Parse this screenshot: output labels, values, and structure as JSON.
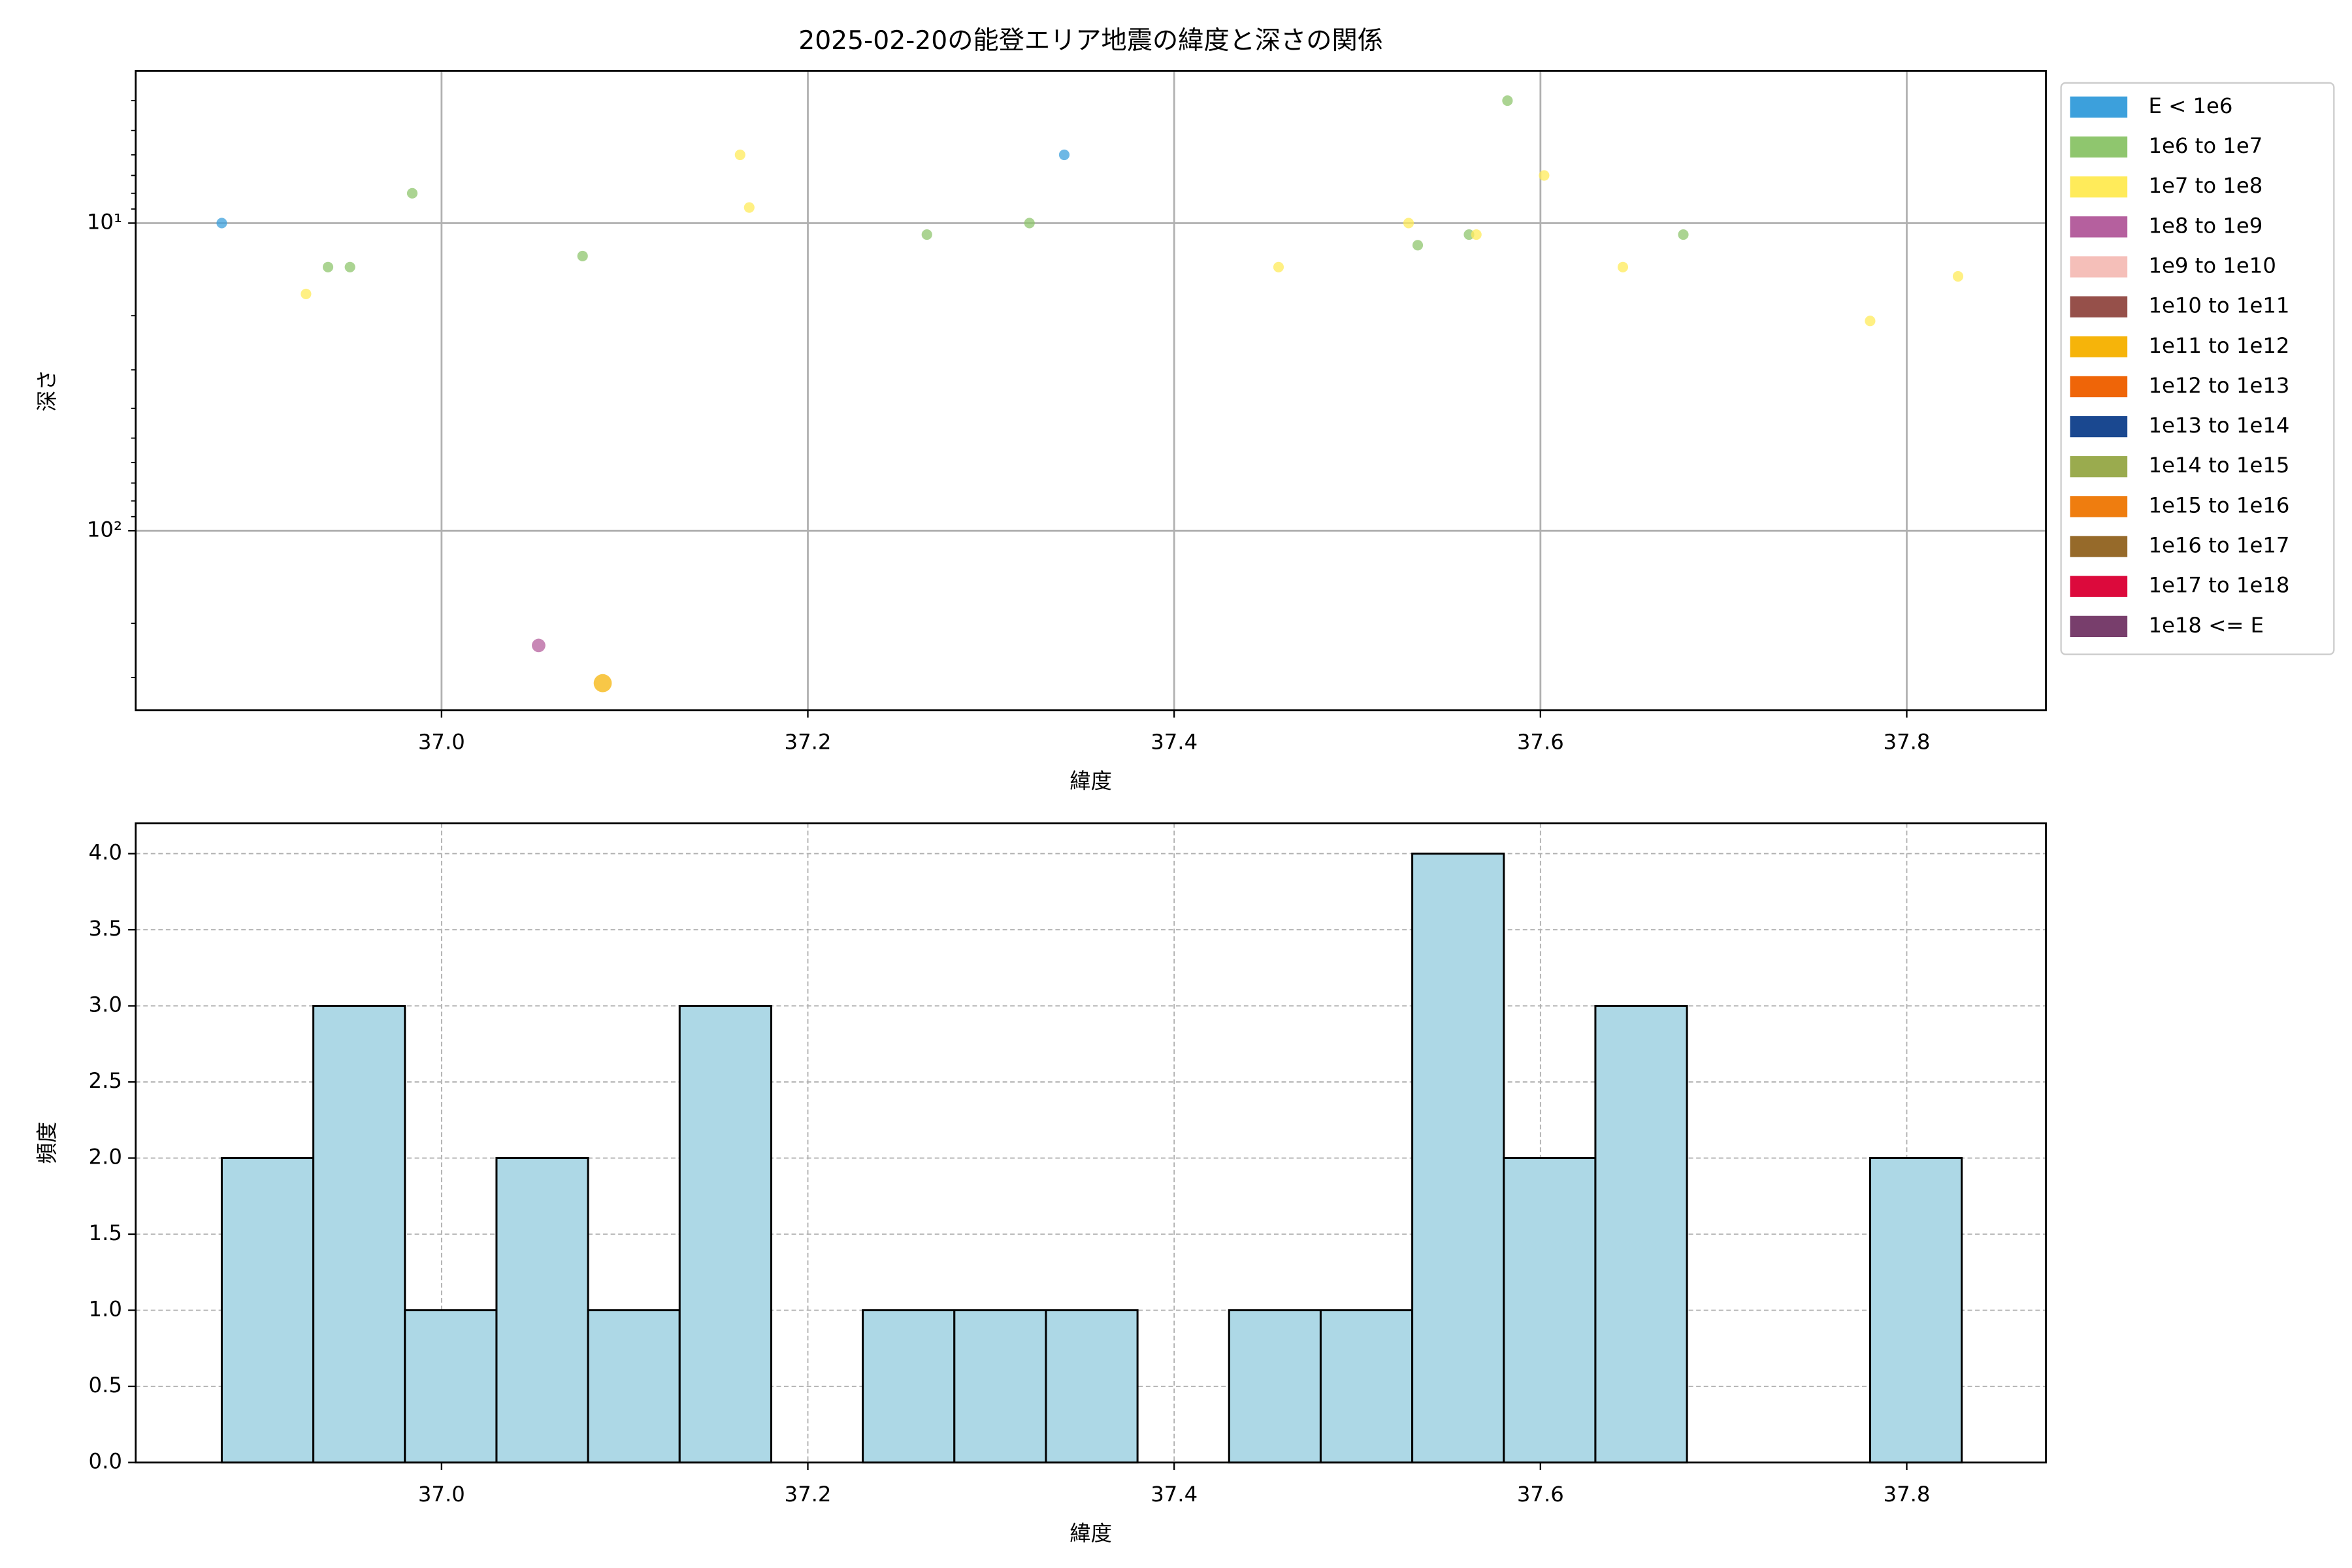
{
  "chart_data": [
    {
      "type": "scatter",
      "title": "2025-02-20の能登エリア地震の緯度と深さの関係",
      "x_label": "緯度",
      "y_label": "深さ",
      "xlim": [
        36.833,
        37.876
      ],
      "xticks": [
        {
          "value": 37,
          "label": "37.0"
        },
        37.2,
        37.4,
        37.6,
        37.8
      ],
      "ylim": [
        3.2,
        383
      ],
      "y_log": true,
      "y_inverted": true,
      "yticks": [
        {
          "value": 10,
          "label": "10¹"
        },
        {
          "value": 100,
          "label": "10²"
        }
      ],
      "yminor_ticks": [
        4,
        5,
        6,
        7,
        8,
        9,
        20,
        30,
        40,
        50,
        60,
        70,
        80,
        90,
        200,
        300
      ],
      "grid": true,
      "legend": "outside-right",
      "series": [
        {
          "name": "E < 1e6",
          "color": "#3ca0dc",
          "marker_size": 3.5,
          "x": [
            36.88,
            37.34
          ],
          "y": [
            10,
            6.0
          ]
        },
        {
          "name": "1e6 to 1e7",
          "color": "#8fc66e",
          "marker_size": 3.5,
          "x": [
            36.938,
            36.95,
            36.984,
            37.077,
            37.265,
            37.321,
            37.533,
            37.561,
            37.582,
            37.678
          ],
          "y": [
            13.9,
            13.9,
            8.0,
            12.8,
            10.9,
            10,
            11.8,
            10.9,
            4.0,
            10.9
          ]
        },
        {
          "name": "1e7 to 1e8",
          "color": "#ffeb5a",
          "marker_size": 3.5,
          "x": [
            36.926,
            37.163,
            37.168,
            37.457,
            37.528,
            37.565,
            37.602,
            37.645,
            37.78,
            37.828
          ],
          "y": [
            17.0,
            6.0,
            8.9,
            13.9,
            10,
            10.9,
            7.0,
            13.9,
            20.8,
            14.9
          ]
        },
        {
          "name": "1e8 to 1e9",
          "color": "#b5609e",
          "marker_size": 4.5,
          "x": [
            37.053
          ],
          "y": [
            236
          ]
        },
        {
          "name": "1e9 to 1e10",
          "color": "#f5bfb9",
          "marker_size": 5,
          "x": [],
          "y": []
        },
        {
          "name": "1e10 to 1e11",
          "color": "#96504a",
          "marker_size": 5.5,
          "x": [],
          "y": []
        },
        {
          "name": "1e11 to 1e12",
          "color": "#f6b40a",
          "marker_size": 6,
          "x": [
            37.088
          ],
          "y": [
            313
          ]
        },
        {
          "name": "1e12 to 1e13",
          "color": "#ef6508",
          "marker_size": 6.5,
          "x": [],
          "y": []
        },
        {
          "name": "1e13 to 1e14",
          "color": "#1a4890",
          "marker_size": 7,
          "x": [],
          "y": []
        },
        {
          "name": "1e14 to 1e15",
          "color": "#9aab4e",
          "marker_size": 7.5,
          "x": [],
          "y": []
        },
        {
          "name": "1e15 to 1e16",
          "color": "#ef7d0f",
          "marker_size": 8,
          "x": [],
          "y": []
        },
        {
          "name": "1e16 to 1e17",
          "color": "#966a2a",
          "marker_size": 8.5,
          "x": [],
          "y": []
        },
        {
          "name": "1e17 to 1e18",
          "color": "#dc0a3c",
          "marker_size": 9,
          "x": [],
          "y": []
        },
        {
          "name": "1e18 <= E",
          "color": "#783e6c",
          "marker_size": 9.5,
          "x": [],
          "y": []
        }
      ]
    },
    {
      "type": "histogram",
      "x_label": "緯度",
      "y_label": "頻度",
      "xlim": [
        36.833,
        37.876
      ],
      "xticks": [
        {
          "value": 37,
          "label": "37.0"
        },
        37.2,
        37.4,
        37.6,
        37.8
      ],
      "ylim": [
        0,
        4.2
      ],
      "yticks": [
        {
          "value": 0,
          "label": "0.0"
        },
        0.5,
        {
          "value": 1,
          "label": "1.0"
        },
        1.5,
        {
          "value": 2,
          "label": "2.0"
        },
        2.5,
        {
          "value": 3,
          "label": "3.0"
        },
        3.5,
        {
          "value": 4,
          "label": "4.0"
        }
      ],
      "grid": true,
      "color": "#add8e6",
      "edgecolor": "#000000",
      "bins": [
        36.88,
        36.93,
        36.98,
        37.03,
        37.08,
        37.13,
        37.18,
        37.23,
        37.28,
        37.33,
        37.38,
        37.43,
        37.48,
        37.53,
        37.58,
        37.63,
        37.68,
        37.73,
        37.78,
        37.83
      ],
      "values": [
        2,
        3,
        1,
        2,
        1,
        3,
        0,
        1,
        1,
        1,
        0,
        1,
        1,
        4,
        2,
        3,
        0,
        0,
        2
      ]
    }
  ]
}
